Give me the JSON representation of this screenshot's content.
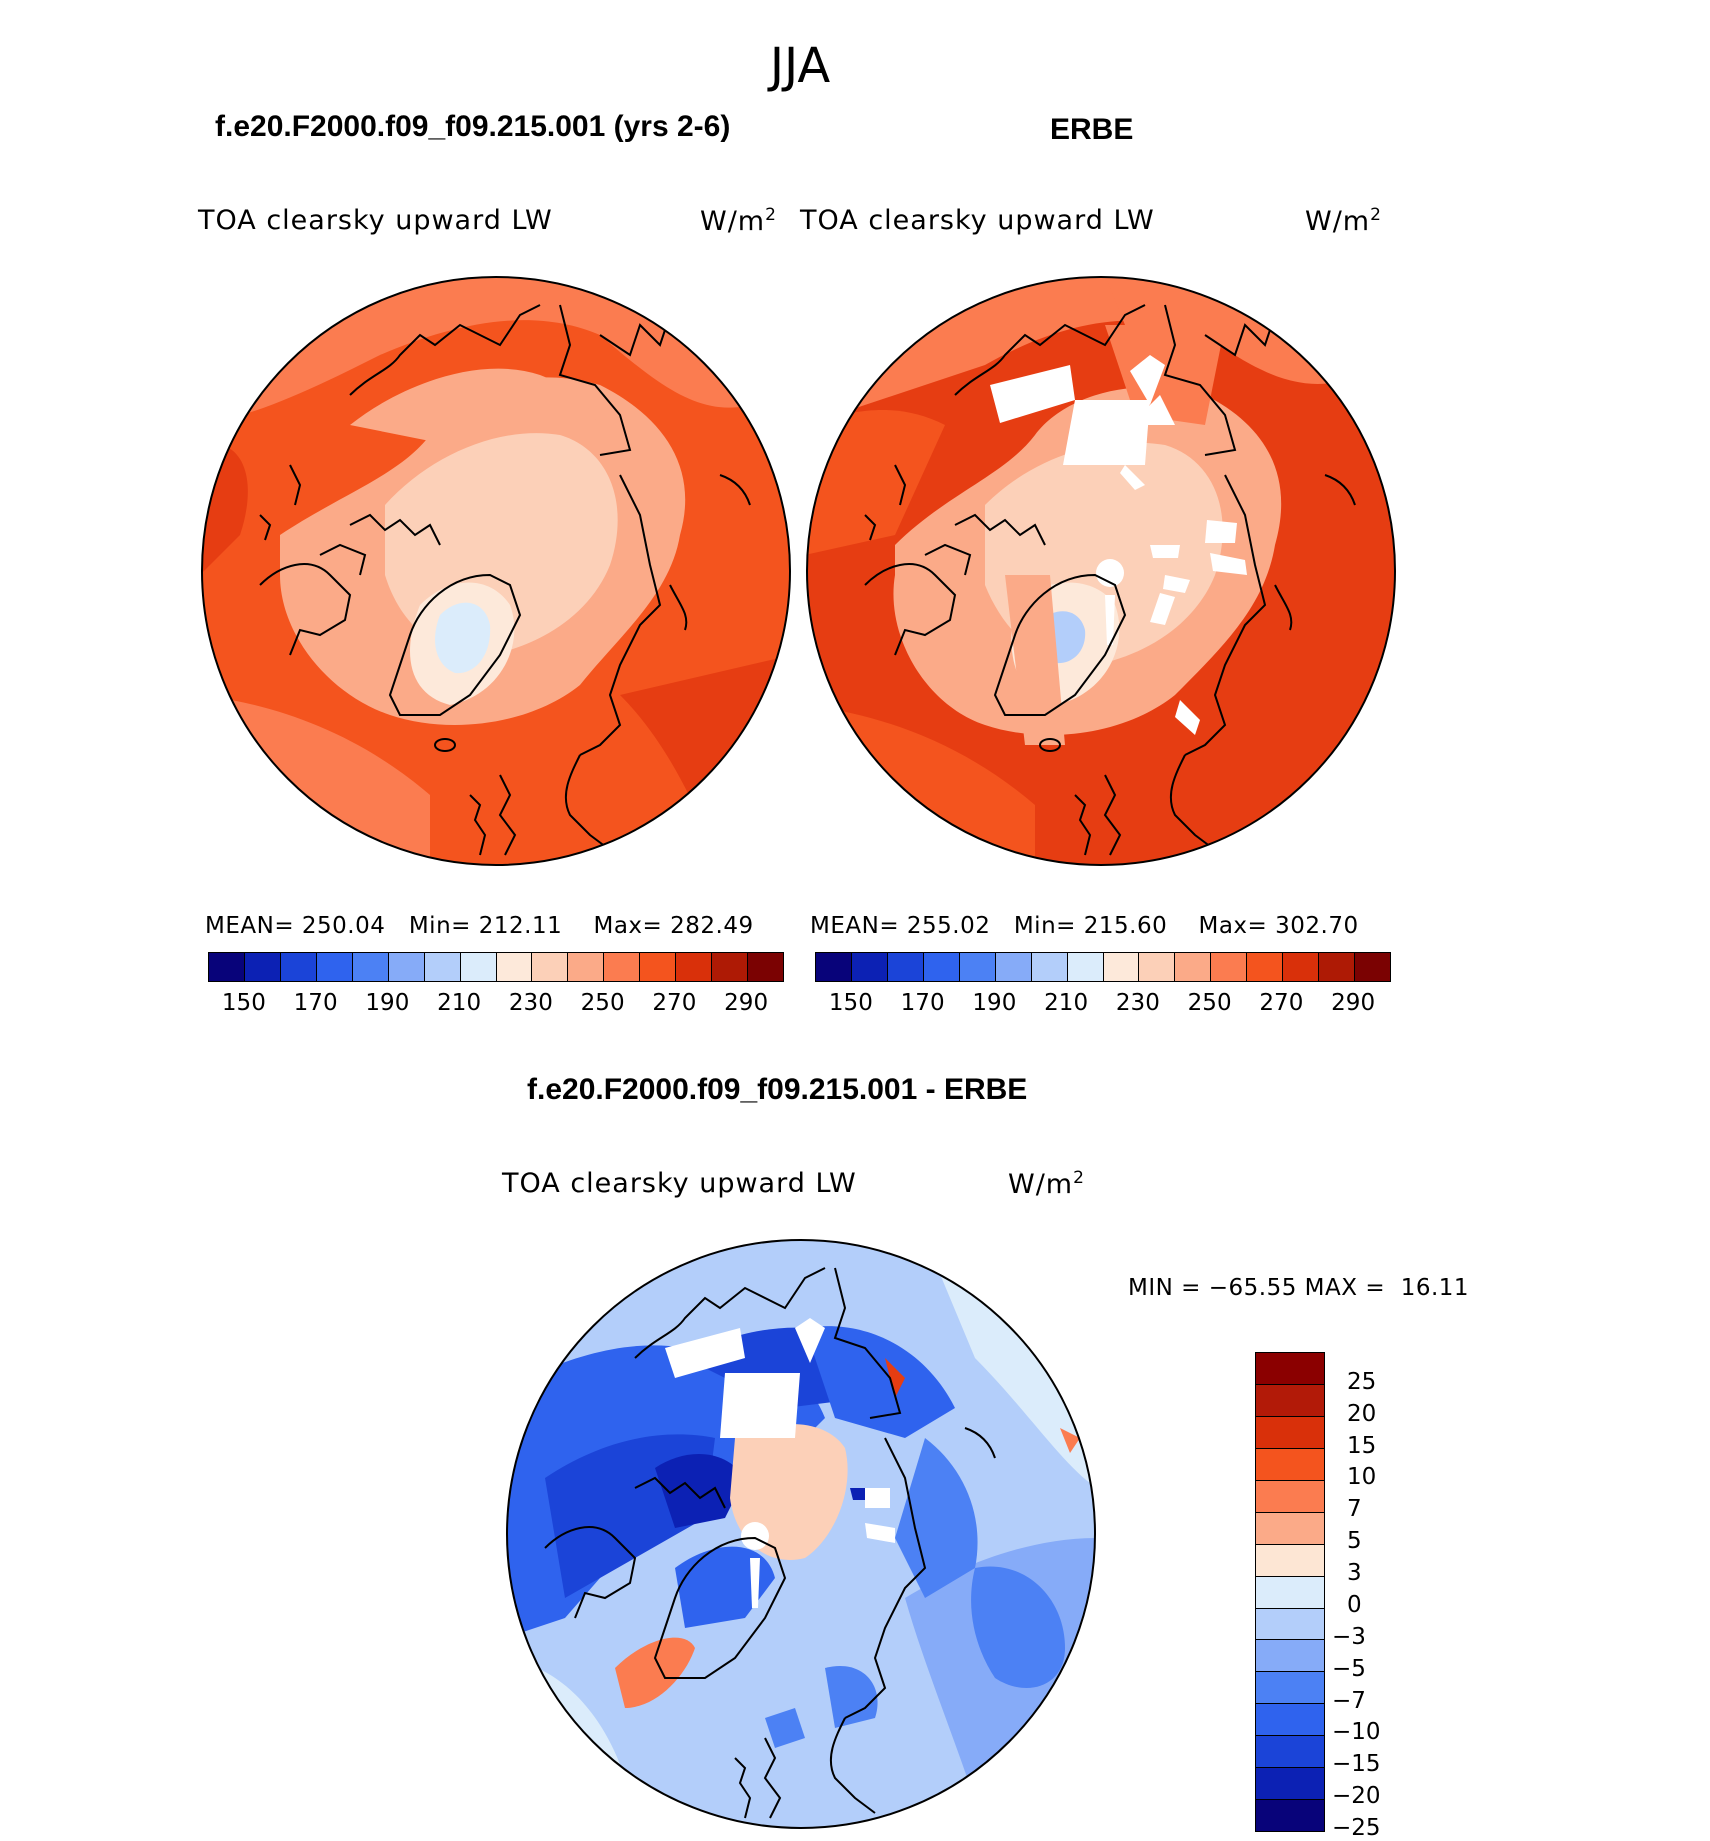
{
  "season": "JJA",
  "panels": [
    {
      "title": "f.e20.F2000.f09_f09.215.001 (yrs 2-6)",
      "variable": "TOA clearsky upward LW",
      "units": "W/m",
      "units_sup": "2",
      "stats": {
        "mean_label": "MEAN=",
        "mean": "250.04",
        "min_label": "Min=",
        "min": "212.11",
        "max_label": "Max=",
        "max": "282.49"
      }
    },
    {
      "title": "ERBE",
      "variable": "TOA clearsky upward LW",
      "units": "W/m",
      "units_sup": "2",
      "stats": {
        "mean_label": "MEAN=",
        "mean": "255.02",
        "min_label": "Min=",
        "min": "215.60",
        "max_label": "Max=",
        "max": "302.70"
      }
    }
  ],
  "colorbar_top": {
    "colors": [
      "#08037a",
      "#0c21b4",
      "#1b44d8",
      "#2f63ee",
      "#4c81f4",
      "#86abf8",
      "#b3cefa",
      "#dbecfb",
      "#fde9da",
      "#fcd0b8",
      "#fbaa88",
      "#fb7c50",
      "#f4541e",
      "#d9300a",
      "#ae1a05",
      "#7b0202"
    ],
    "labels": [
      "150",
      "170",
      "190",
      "210",
      "230",
      "250",
      "270",
      "290"
    ]
  },
  "diff_panel": {
    "title": "f.e20.F2000.f09_f09.215.001 - ERBE",
    "variable": "TOA clearsky upward LW",
    "units": "W/m",
    "units_sup": "2",
    "min_label": "MIN =",
    "min": "−65.55",
    "max_label": "MAX =",
    "max": "16.11"
  },
  "colorbar_diff": {
    "colors": [
      "#8b0000",
      "#b21a08",
      "#d9300a",
      "#f4541e",
      "#fb7c50",
      "#fbaa88",
      "#fde6d4",
      "#dbecfb",
      "#b3cefa",
      "#86abf8",
      "#4c81f4",
      "#2f63ee",
      "#1b44d8",
      "#0c21b4",
      "#08037a"
    ],
    "labels": [
      "25",
      "20",
      "15",
      "10",
      "7",
      "5",
      "3",
      "0",
      "−3",
      "−5",
      "−7",
      "−10",
      "−15",
      "−20",
      "−25"
    ]
  }
}
